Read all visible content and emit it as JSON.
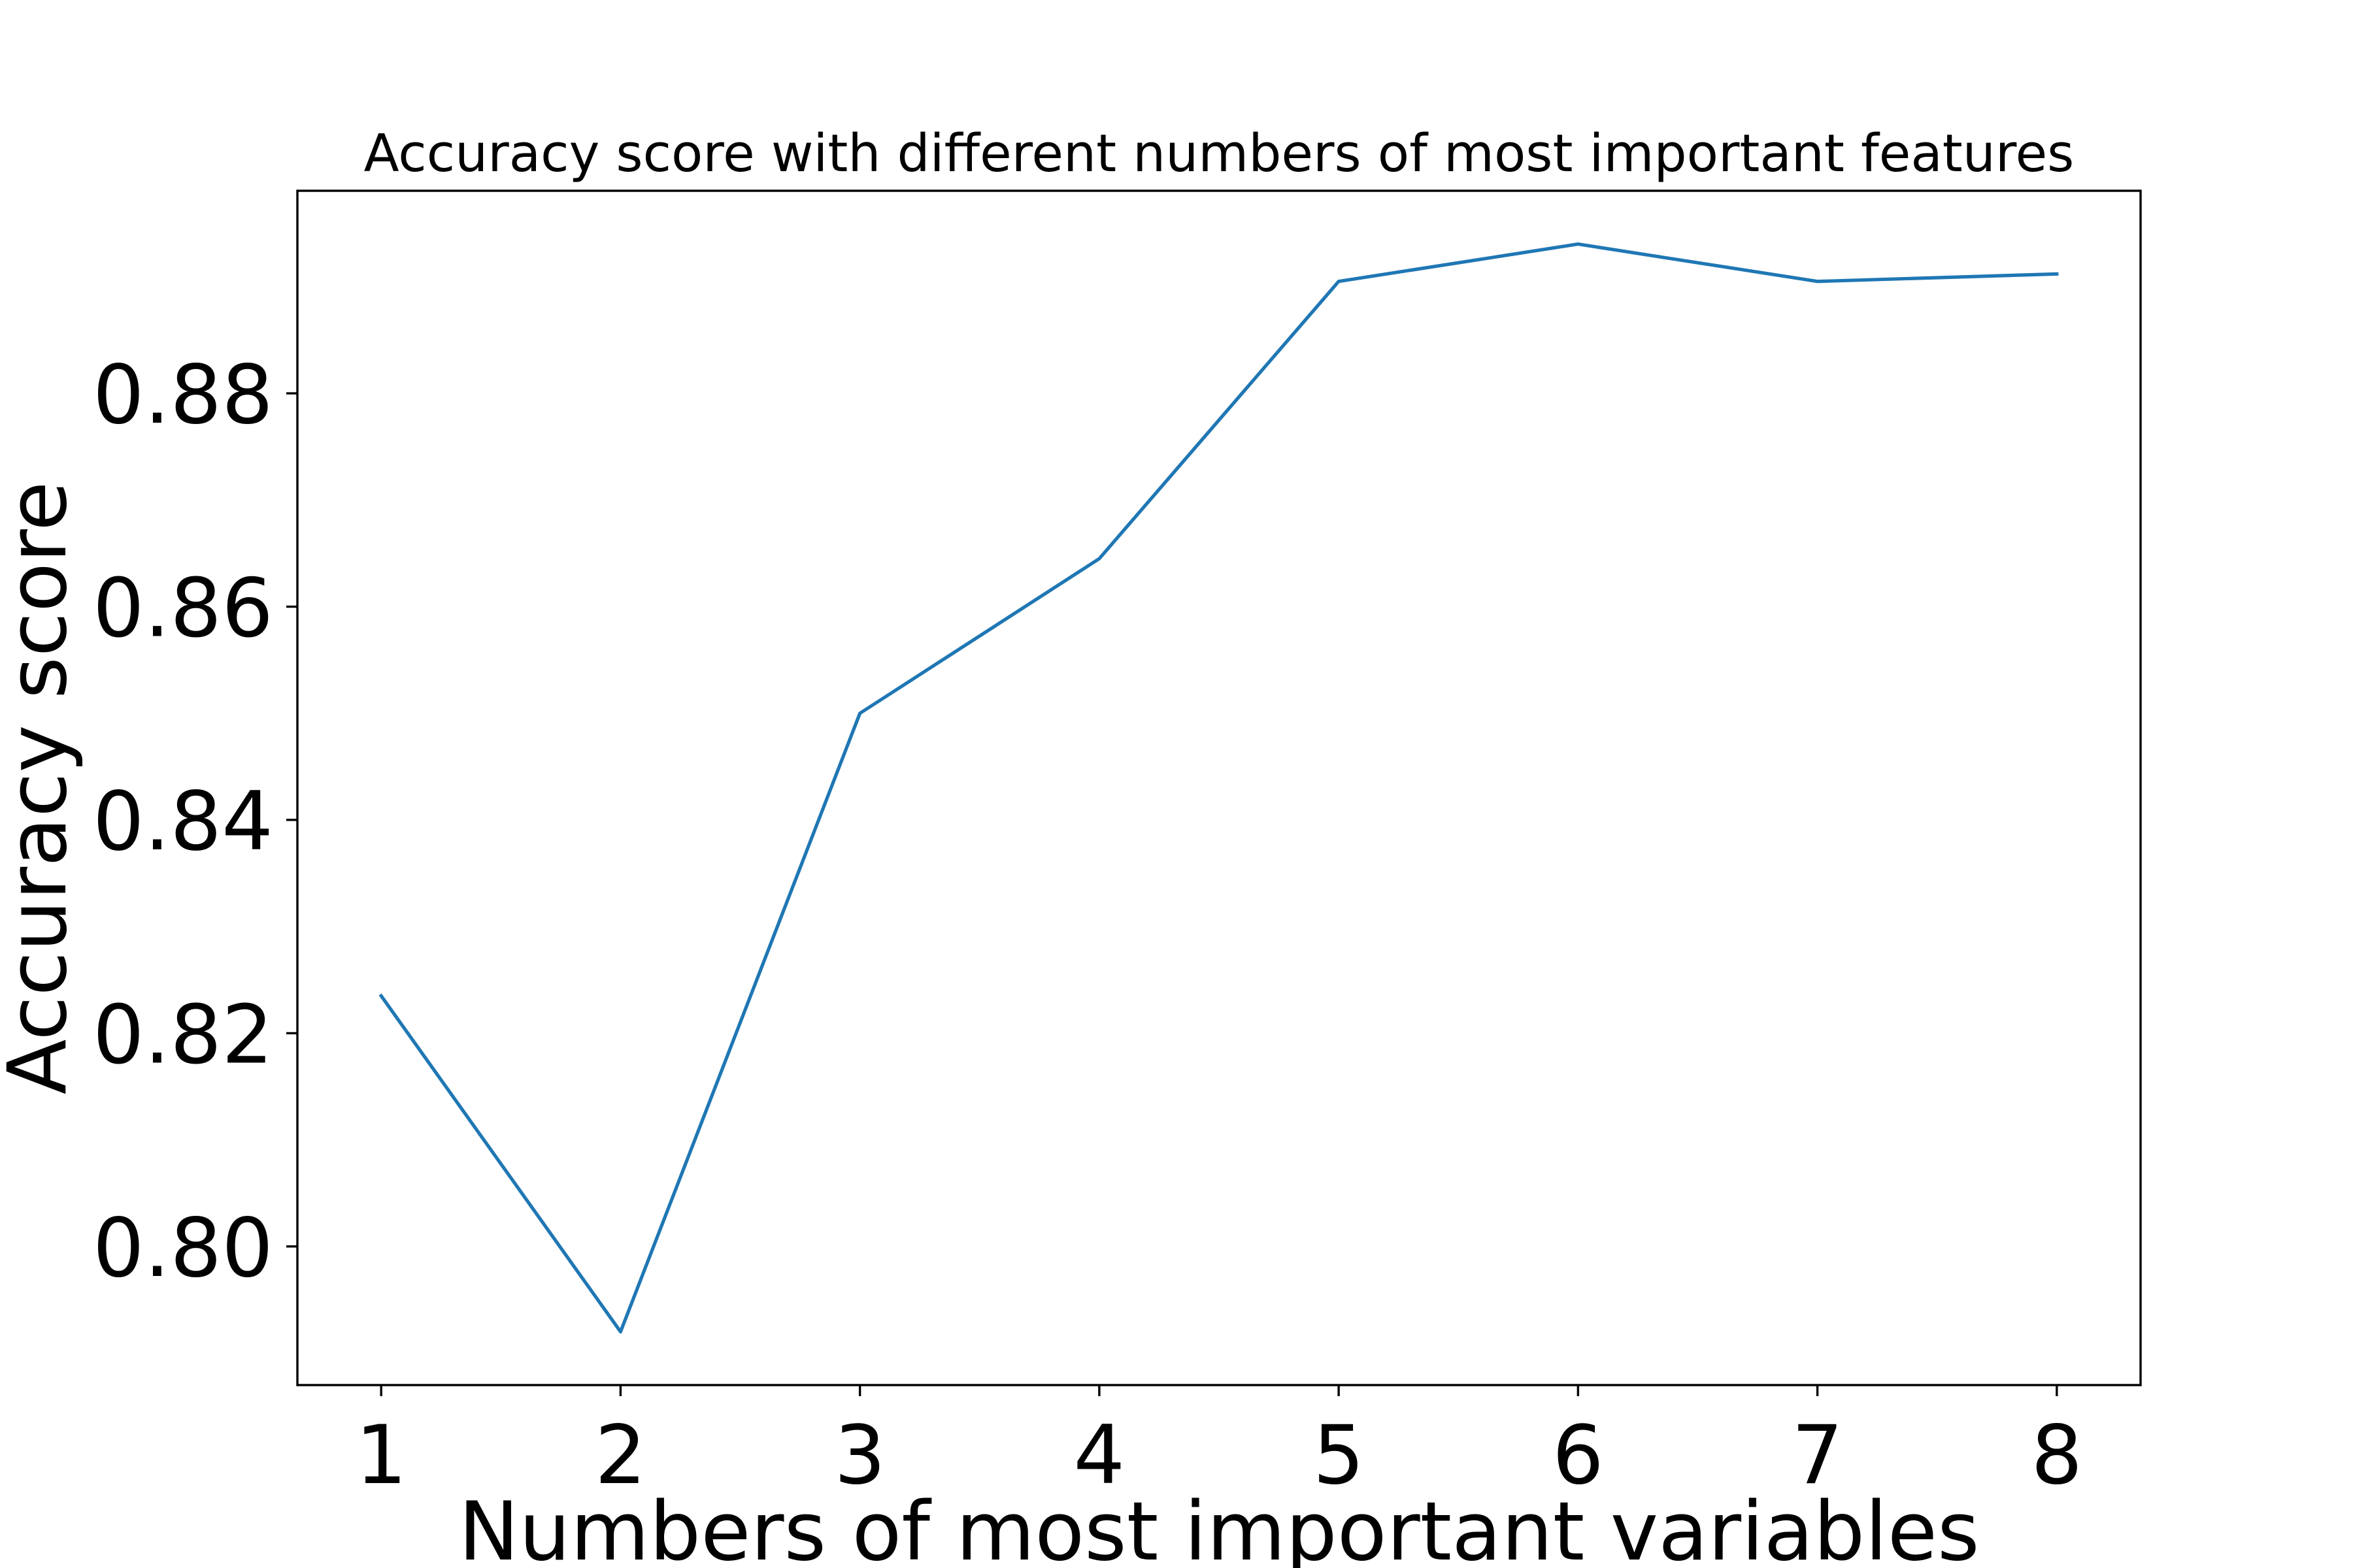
{
  "chart_data": {
    "type": "line",
    "title": "Accuracy score with different numbers of most important features",
    "xlabel": "Numbers of most important variables",
    "ylabel": "Accuracy score",
    "x": [
      1,
      2,
      3,
      4,
      5,
      6,
      7,
      8
    ],
    "x_tick_labels": [
      "1",
      "2",
      "3",
      "4",
      "5",
      "6",
      "7",
      "8"
    ],
    "y_tick_values": [
      0.8,
      0.82,
      0.84,
      0.86,
      0.88
    ],
    "y_tick_labels": [
      "0.80",
      "0.82",
      "0.84",
      "0.86",
      "0.88"
    ],
    "series": [
      {
        "values": [
          0.8235,
          0.792,
          0.85,
          0.8645,
          0.8905,
          0.894,
          0.8905,
          0.8912
        ],
        "color": "#1f77b4"
      }
    ],
    "xlim": [
      0.65,
      8.35
    ],
    "ylim": [
      0.787,
      0.899
    ],
    "grid": false,
    "legend": false
  }
}
